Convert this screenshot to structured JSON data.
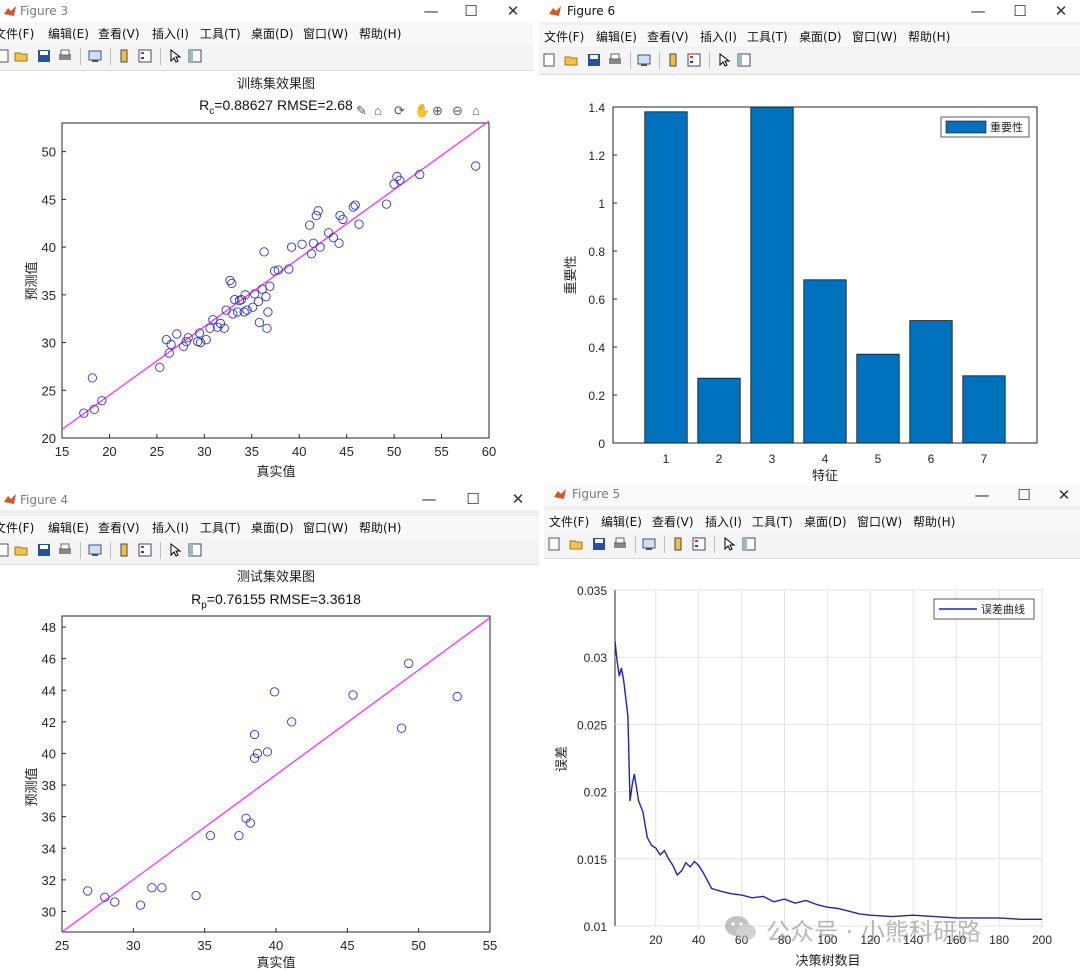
{
  "menus": [
    "文件(F)",
    "编辑(E)",
    "查看(V)",
    "插入(I)",
    "工具(T)",
    "桌面(D)",
    "窗口(W)",
    "帮助(H)"
  ],
  "window_buttons": {
    "minimize": "—",
    "maximize": "☐",
    "close": "✕"
  },
  "colors": {
    "scatter": "#3333cc",
    "fit_line": "#ff33ff",
    "bar": "#0072bd",
    "error_line": "#2222bb"
  },
  "figure3": {
    "title": "Figure 3",
    "chart_data": {
      "type": "scatter",
      "title": "训练集效果图",
      "subtitle_prefix": "R",
      "subtitle_sub": "c",
      "subtitle_rest": "=0.88627  RMSE=2.68",
      "xlabel": "真实值",
      "ylabel": "预测值",
      "xlim": [
        15,
        60
      ],
      "ylim": [
        20,
        53
      ],
      "xticks": [
        15,
        20,
        25,
        30,
        35,
        40,
        45,
        50,
        55,
        60
      ],
      "yticks": [
        20,
        25,
        30,
        35,
        40,
        45,
        50
      ],
      "fit_line": [
        [
          15,
          20.9
        ],
        [
          60,
          53.2
        ]
      ],
      "points": [
        [
          17.3,
          22.6
        ],
        [
          18.4,
          23.0
        ],
        [
          18.2,
          26.3
        ],
        [
          19.2,
          23.9
        ],
        [
          25.3,
          27.4
        ],
        [
          26,
          30.3
        ],
        [
          26.3,
          28.9
        ],
        [
          26.5,
          29.8
        ],
        [
          27.1,
          30.9
        ],
        [
          27.8,
          29.6
        ],
        [
          28.1,
          30.1
        ],
        [
          28.3,
          30.5
        ],
        [
          29.3,
          30.1
        ],
        [
          29.5,
          31.0
        ],
        [
          29.6,
          30.0
        ],
        [
          30.2,
          30.3
        ],
        [
          30.6,
          31.5
        ],
        [
          30.9,
          32.4
        ],
        [
          31.4,
          31.6
        ],
        [
          31.7,
          32.0
        ],
        [
          32.1,
          31.5
        ],
        [
          32.3,
          33.4
        ],
        [
          32.7,
          36.5
        ],
        [
          32.9,
          36.2
        ],
        [
          33.0,
          33.0
        ],
        [
          33.2,
          34.5
        ],
        [
          33.5,
          33.2
        ],
        [
          33.7,
          34.4
        ],
        [
          33.9,
          34.5
        ],
        [
          34.2,
          33.2
        ],
        [
          34.3,
          35.0
        ],
        [
          34.5,
          33.4
        ],
        [
          35.1,
          33.7
        ],
        [
          35.3,
          35.1
        ],
        [
          35.7,
          34.3
        ],
        [
          35.8,
          32.1
        ],
        [
          36.1,
          35.6
        ],
        [
          36.3,
          39.5
        ],
        [
          36.5,
          34.8
        ],
        [
          36.6,
          31.5
        ],
        [
          36.7,
          33.2
        ],
        [
          36.9,
          35.9
        ],
        [
          37.4,
          37.5
        ],
        [
          37.8,
          37.6
        ],
        [
          38.9,
          37.7
        ],
        [
          39.2,
          40.0
        ],
        [
          40.3,
          40.3
        ],
        [
          41.1,
          42.3
        ],
        [
          41.3,
          39.3
        ],
        [
          41.5,
          40.4
        ],
        [
          41.8,
          43.3
        ],
        [
          42,
          43.8
        ],
        [
          42.2,
          40.0
        ],
        [
          43.1,
          41.5
        ],
        [
          43.6,
          41.0
        ],
        [
          44.2,
          40.4
        ],
        [
          44.3,
          43.3
        ],
        [
          44.6,
          42.9
        ],
        [
          45.7,
          44.2
        ],
        [
          45.9,
          44.4
        ],
        [
          46.3,
          42.4
        ],
        [
          49.2,
          44.5
        ],
        [
          50.0,
          46.6
        ],
        [
          50.3,
          47.4
        ],
        [
          50.6,
          47.0
        ],
        [
          52.7,
          47.6
        ],
        [
          58.6,
          48.5
        ]
      ]
    }
  },
  "figure4": {
    "title": "Figure 4",
    "chart_data": {
      "type": "scatter",
      "title": "测试集效果图",
      "subtitle_prefix": "R",
      "subtitle_sub": "p",
      "subtitle_rest": "=0.76155  RMSE=3.3618",
      "xlabel": "真实值",
      "ylabel": "预测值",
      "xlim": [
        25,
        55
      ],
      "ylim": [
        28.7,
        48.7
      ],
      "xticks": [
        25,
        30,
        35,
        40,
        45,
        50,
        55
      ],
      "yticks": [
        30,
        32,
        34,
        36,
        38,
        40,
        42,
        44,
        46,
        48
      ],
      "fit_line": [
        [
          25,
          28.7
        ],
        [
          55,
          48.6
        ]
      ],
      "points": [
        [
          26.8,
          31.3
        ],
        [
          28,
          30.9
        ],
        [
          28.7,
          30.6
        ],
        [
          30.5,
          30.4
        ],
        [
          31.3,
          31.5
        ],
        [
          32,
          31.5
        ],
        [
          34.4,
          31.0
        ],
        [
          35.4,
          34.8
        ],
        [
          37.4,
          34.8
        ],
        [
          37.9,
          35.9
        ],
        [
          38.2,
          35.6
        ],
        [
          38.5,
          41.2
        ],
        [
          38.5,
          39.7
        ],
        [
          38.7,
          40.0
        ],
        [
          39.4,
          40.1
        ],
        [
          39.9,
          43.9
        ],
        [
          41.1,
          42.0
        ],
        [
          45.4,
          43.7
        ],
        [
          48.8,
          41.6
        ],
        [
          49.3,
          45.7
        ],
        [
          52.7,
          43.6
        ]
      ]
    }
  },
  "figure6": {
    "title": "Figure 6",
    "chart_data": {
      "type": "bar",
      "categories": [
        "1",
        "2",
        "3",
        "4",
        "5",
        "6",
        "7"
      ],
      "values": [
        1.38,
        0.27,
        1.4,
        0.68,
        0.37,
        0.51,
        0.28
      ],
      "xlabel": "特征",
      "ylabel": "重要性",
      "ylim": [
        0,
        1.4
      ],
      "yticks": [
        "0",
        "0.2",
        "0.4",
        "0.6",
        "0.8",
        "1",
        "1.2",
        "1.4"
      ],
      "legend": "重要性",
      "legend_position": "top-right"
    }
  },
  "figure5": {
    "title": "Figure 5",
    "chart_data": {
      "type": "line",
      "xlabel": "决策树数目",
      "ylabel": "误差",
      "xlim": [
        1,
        200
      ],
      "ylim": [
        0.01,
        0.035
      ],
      "xticks": [
        "20",
        "40",
        "60",
        "80",
        "100",
        "120",
        "140",
        "160",
        "180",
        "200"
      ],
      "yticks": [
        "0.01",
        "0.015",
        "0.02",
        "0.025",
        "0.03",
        "0.035"
      ],
      "grid": true,
      "legend": "误差曲线",
      "legend_position": "top-right",
      "points": [
        [
          1,
          0.0312
        ],
        [
          2,
          0.0297
        ],
        [
          3,
          0.0286
        ],
        [
          4,
          0.0292
        ],
        [
          5,
          0.0283
        ],
        [
          6,
          0.027
        ],
        [
          7,
          0.0256
        ],
        [
          8,
          0.0193
        ],
        [
          9,
          0.0205
        ],
        [
          10,
          0.0213
        ],
        [
          11,
          0.0203
        ],
        [
          12,
          0.0193
        ],
        [
          14,
          0.0185
        ],
        [
          16,
          0.0166
        ],
        [
          18,
          0.016
        ],
        [
          20,
          0.0158
        ],
        [
          22,
          0.0153
        ],
        [
          24,
          0.0156
        ],
        [
          26,
          0.015
        ],
        [
          28,
          0.0145
        ],
        [
          30,
          0.0138
        ],
        [
          32,
          0.0141
        ],
        [
          34,
          0.0147
        ],
        [
          36,
          0.0144
        ],
        [
          38,
          0.0148
        ],
        [
          40,
          0.0145
        ],
        [
          42,
          0.014
        ],
        [
          44,
          0.0134
        ],
        [
          46,
          0.0128
        ],
        [
          50,
          0.0126
        ],
        [
          55,
          0.0124
        ],
        [
          60,
          0.0123
        ],
        [
          65,
          0.0121
        ],
        [
          70,
          0.0122
        ],
        [
          75,
          0.0118
        ],
        [
          80,
          0.012
        ],
        [
          85,
          0.0117
        ],
        [
          90,
          0.0119
        ],
        [
          95,
          0.0116
        ],
        [
          100,
          0.0114
        ],
        [
          105,
          0.0113
        ],
        [
          110,
          0.0111
        ],
        [
          115,
          0.0109
        ],
        [
          120,
          0.0108
        ],
        [
          130,
          0.0107
        ],
        [
          140,
          0.0108
        ],
        [
          150,
          0.0107
        ],
        [
          160,
          0.0106
        ],
        [
          170,
          0.0106
        ],
        [
          180,
          0.0106
        ],
        [
          190,
          0.0105
        ],
        [
          200,
          0.0105
        ]
      ]
    }
  },
  "watermark": {
    "text": "公众号 · 小熊科研路"
  }
}
